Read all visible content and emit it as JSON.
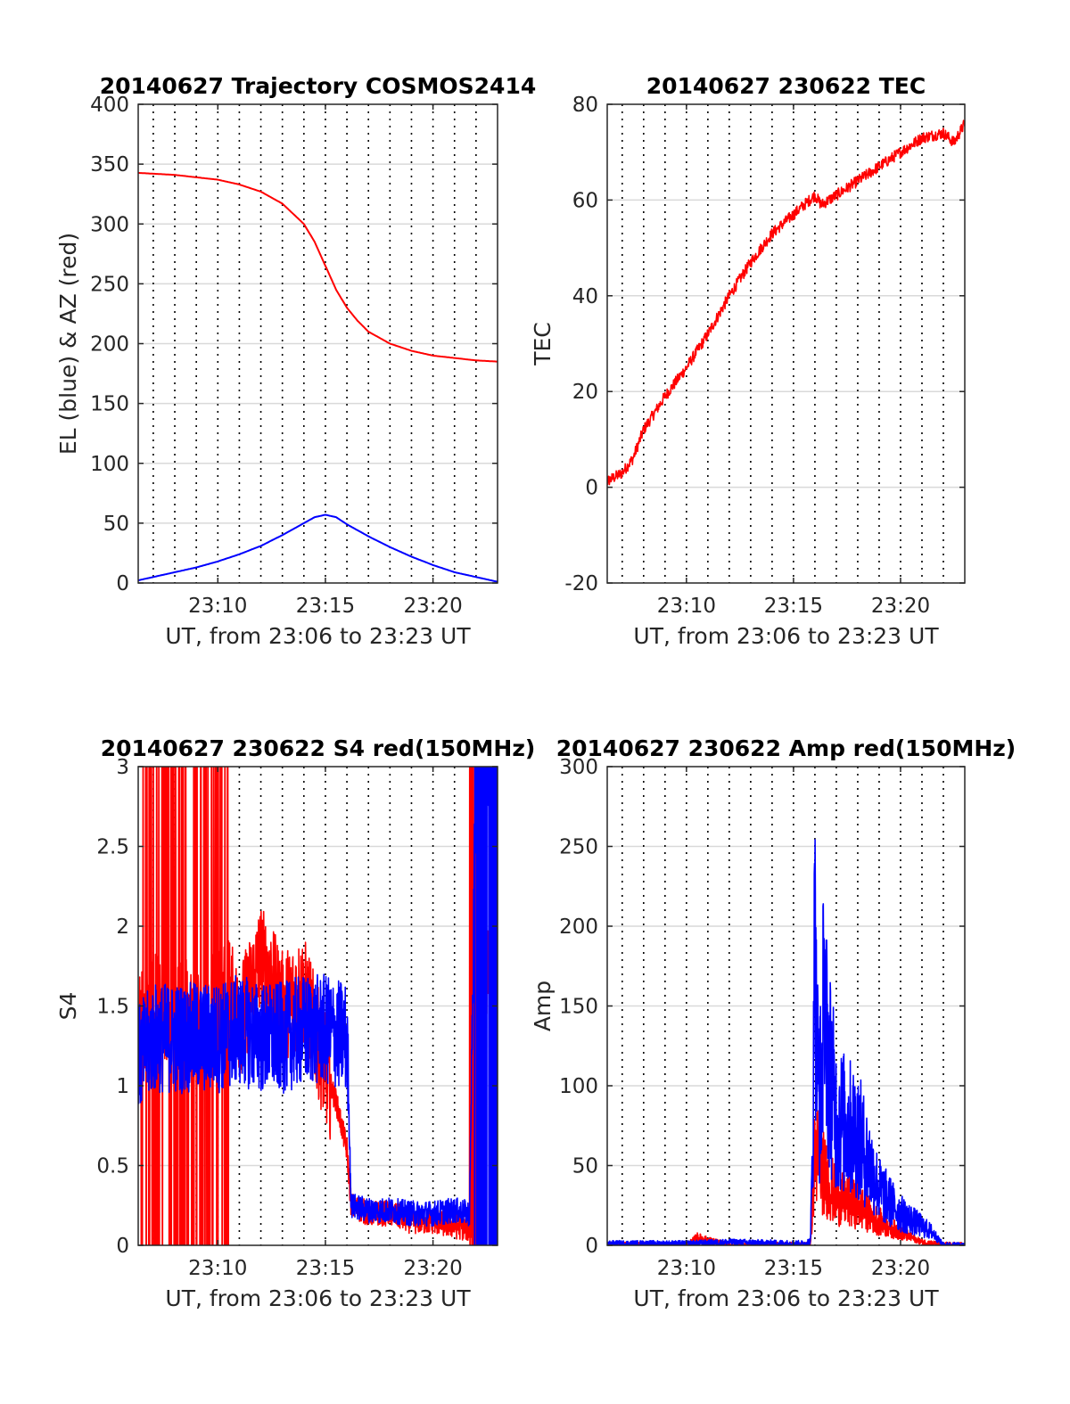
{
  "colors": {
    "red": "#ff0000",
    "blue": "#0000ff",
    "grid": "#d9d9d9",
    "axis": "#262626"
  },
  "chart_data": [
    {
      "type": "line",
      "title": "20140627 Trajectory COSMOS2414",
      "xlabel": "UT, from 23:06 to 23:23 UT",
      "ylabel": "EL (blue) & AZ (red)",
      "xlim": [
        23.1,
        23.383
      ],
      "xticks": [
        "23:10",
        "23:15",
        "23:20"
      ],
      "ylim": [
        0,
        400
      ],
      "yticks": [
        "0",
        "50",
        "100",
        "150",
        "200",
        "250",
        "300",
        "350",
        "400"
      ],
      "grid": true,
      "series": [
        {
          "color": "red",
          "style": "smooth",
          "x": [
            "23:06",
            "23:08",
            "23:10",
            "23:11",
            "23:12",
            "23:13",
            "23:14",
            "23:14.5",
            "23:15",
            "23:15.5",
            "23:16",
            "23:16.5",
            "23:17",
            "23:18",
            "23:19",
            "23:20",
            "23:21",
            "23:22",
            "23:23"
          ],
          "y": [
            343,
            341,
            337,
            333,
            327,
            317,
            300,
            285,
            265,
            245,
            230,
            219,
            210,
            200,
            194,
            190,
            188,
            186,
            185
          ]
        },
        {
          "color": "blue",
          "style": "smooth",
          "x": [
            "23:06",
            "23:07",
            "23:08",
            "23:09",
            "23:10",
            "23:11",
            "23:12",
            "23:13",
            "23:14",
            "23:14.5",
            "23:15",
            "23:15.5",
            "23:16",
            "23:17",
            "23:18",
            "23:19",
            "23:20",
            "23:21",
            "23:22",
            "23:23"
          ],
          "y": [
            1,
            5,
            9,
            13,
            18,
            24,
            31,
            40,
            50,
            55,
            57,
            55,
            49,
            39,
            30,
            22,
            15,
            9,
            5,
            1
          ]
        }
      ]
    },
    {
      "type": "line",
      "title": "20140627 230622 TEC",
      "xlabel": "UT, from 23:06 to 23:23 UT",
      "ylabel": "TEC",
      "xlim": [
        23.1,
        23.383
      ],
      "xticks": [
        "23:10",
        "23:15",
        "23:20"
      ],
      "ylim": [
        -20,
        80
      ],
      "yticks": [
        "-20",
        "0",
        "20",
        "40",
        "60",
        "80"
      ],
      "grid": true,
      "series": [
        {
          "color": "red",
          "style": "noisy",
          "x": [
            "23:06",
            "23:07",
            "23:07.5",
            "23:08",
            "23:09",
            "23:10",
            "23:11",
            "23:12",
            "23:13",
            "23:14",
            "23:15",
            "23:15.5",
            "23:16",
            "23:16.3",
            "23:17",
            "23:18",
            "23:19",
            "23:20",
            "23:21",
            "23:22",
            "23:22.5",
            "23:23"
          ],
          "y": [
            0.5,
            3,
            6,
            12,
            19,
            25,
            32,
            40,
            47,
            53,
            57,
            59,
            61,
            59,
            61,
            64,
            67,
            70,
            73,
            74,
            72,
            76
          ]
        }
      ]
    },
    {
      "type": "line",
      "title": "20140627 230622 S4 red(150MHz)",
      "xlabel": "UT, from 23:06 to 23:23 UT",
      "ylabel": "S4",
      "xlim": [
        23.1,
        23.383
      ],
      "xticks": [
        "23:10",
        "23:15",
        "23:20"
      ],
      "ylim": [
        0,
        3
      ],
      "yticks": [
        "0",
        "0.5",
        "1",
        "1.5",
        "2",
        "2.5",
        "3"
      ],
      "grid": true,
      "series": [
        {
          "color": "red",
          "style": "noisy",
          "x": [
            "23:06",
            "23:07",
            "23:08",
            "23:09",
            "23:10",
            "23:10.5",
            "23:11",
            "23:12",
            "23:13",
            "23:14",
            "23:15",
            "23:15.5",
            "23:16",
            "23:16.2",
            "23:17",
            "23:18",
            "23:19",
            "23:20",
            "23:21",
            "23:21.8",
            "23:22",
            "23:22.5",
            "23:23"
          ],
          "y": [
            1.3,
            1.5,
            1.5,
            1.4,
            1.5,
            1.6,
            1.4,
            1.8,
            1.5,
            1.6,
            1.1,
            0.9,
            0.6,
            0.25,
            0.2,
            0.2,
            0.15,
            0.15,
            0.12,
            0.1,
            2.5,
            1.7,
            1.6
          ],
          "saturated_until": "23:10.5"
        },
        {
          "color": "blue",
          "style": "noisy",
          "x": [
            "23:06",
            "23:07",
            "23:08",
            "23:09",
            "23:10",
            "23:11",
            "23:12",
            "23:13",
            "23:14",
            "23:15",
            "23:16",
            "23:16.2",
            "23:17",
            "23:18",
            "23:19",
            "23:20",
            "23:21",
            "23:21.7",
            "23:22",
            "23:23"
          ],
          "y": [
            1.1,
            1.3,
            1.3,
            1.3,
            1.3,
            1.35,
            1.3,
            1.3,
            1.35,
            1.35,
            1.3,
            0.25,
            0.22,
            0.22,
            0.2,
            0.2,
            0.22,
            0.2,
            3.0,
            3.0
          ]
        }
      ]
    },
    {
      "type": "line",
      "title": "20140627 230622 Amp red(150MHz)",
      "xlabel": "UT, from 23:06 to 23:23 UT",
      "ylabel": "Amp",
      "xlim": [
        23.1,
        23.383
      ],
      "xticks": [
        "23:10",
        "23:15",
        "23:20"
      ],
      "ylim": [
        0,
        300
      ],
      "yticks": [
        "0",
        "50",
        "100",
        "150",
        "200",
        "250",
        "300"
      ],
      "grid": true,
      "series": [
        {
          "color": "red",
          "style": "noisy",
          "x": [
            "23:06",
            "23:09",
            "23:10",
            "23:10.5",
            "23:12",
            "23:15.5",
            "23:15.8",
            "23:16",
            "23:16.4",
            "23:17",
            "23:18",
            "23:19",
            "23:20",
            "23:21",
            "23:22",
            "23:23"
          ],
          "y": [
            0,
            0,
            0,
            5,
            0,
            0,
            1,
            60,
            45,
            30,
            25,
            15,
            8,
            2,
            0,
            0
          ]
        },
        {
          "color": "blue",
          "style": "noisy",
          "x": [
            "23:06",
            "23:10",
            "23:12",
            "23:15.5",
            "23:15.8",
            "23:16",
            "23:16.2",
            "23:16.5",
            "23:17",
            "23:17.5",
            "23:18",
            "23:19",
            "23:20",
            "23:21",
            "23:21.5",
            "23:22",
            "23:23"
          ],
          "y": [
            1,
            1,
            2,
            1,
            3,
            150,
            90,
            130,
            80,
            75,
            70,
            35,
            20,
            12,
            8,
            0,
            0
          ],
          "peaks": [
            [
              "23:16.0",
              258
            ],
            [
              "23:16.4",
              215
            ]
          ]
        }
      ]
    }
  ]
}
